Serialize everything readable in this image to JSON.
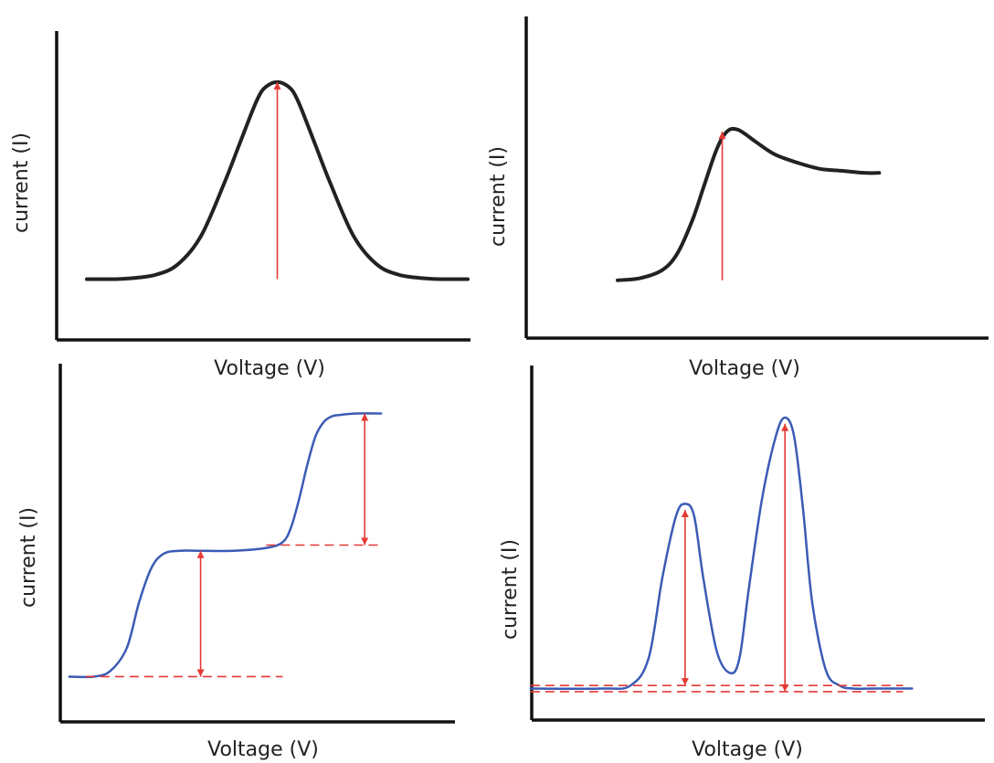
{
  "chart_data": [
    {
      "type": "line",
      "title": "",
      "xlabel": "Voltage (V)",
      "ylabel": "current (I)",
      "series": [
        {
          "x": [
            0,
            4,
            10,
            18,
            24,
            30,
            36,
            40,
            44,
            46,
            48,
            50,
            52,
            54,
            56,
            60,
            64,
            70,
            76,
            82,
            90,
            96,
            100
          ],
          "y": [
            4,
            4,
            4.2,
            6,
            11,
            24,
            48,
            66,
            84,
            91,
            94,
            95,
            94,
            91,
            84,
            66,
            48,
            24,
            11,
            6,
            4.2,
            4,
            4
          ]
        }
      ],
      "annotations": [
        {
          "type": "arrow",
          "x": 50,
          "from": 4,
          "to": 95
        }
      ]
    },
    {
      "type": "line",
      "title": "",
      "xlabel": "Voltage (V)",
      "ylabel": "current (I)",
      "series": [
        {
          "x": [
            0,
            6,
            12,
            16,
            20,
            23,
            26,
            28,
            30,
            32,
            34,
            37,
            42,
            48,
            54,
            60,
            66,
            70
          ],
          "y": [
            5,
            6,
            10,
            18,
            34,
            50,
            66,
            74,
            78,
            78,
            76,
            72,
            66,
            62,
            59,
            58,
            57,
            57
          ]
        }
      ],
      "annotations": [
        {
          "type": "arrow",
          "x": 28,
          "from": 5,
          "to": 77
        }
      ]
    },
    {
      "type": "line",
      "title": "",
      "xlabel": "Voltage (V)",
      "ylabel": "current (I)",
      "series": [
        {
          "x": [
            10,
            16,
            20,
            24,
            27,
            30,
            33,
            37,
            42,
            50,
            58,
            62,
            64,
            66,
            68,
            70,
            72,
            74,
            76,
            80,
            86
          ],
          "y": [
            4,
            4,
            6,
            14,
            30,
            42,
            47,
            48,
            48,
            48,
            49,
            51,
            56,
            66,
            78,
            88,
            93,
            95,
            95.5,
            96,
            96
          ]
        }
      ],
      "annotations": [
        {
          "type": "arrow",
          "x": 42,
          "from": 4,
          "to": 48
        },
        {
          "type": "arrow",
          "x": 82,
          "from": 50,
          "to": 96
        }
      ]
    },
    {
      "type": "line",
      "title": "",
      "xlabel": "Voltage (V)",
      "ylabel": "current (I)",
      "series": [
        {
          "x": [
            4,
            20,
            26,
            30,
            33,
            36,
            38,
            40,
            42,
            45,
            48,
            50,
            52,
            55,
            58,
            60,
            62,
            64,
            66,
            69,
            72,
            75,
            80,
            88
          ],
          "y": [
            4,
            4,
            5,
            14,
            40,
            60,
            64,
            60,
            40,
            16,
            9,
            14,
            36,
            66,
            86,
            92,
            86,
            62,
            32,
            10,
            5,
            4,
            4,
            4
          ]
        }
      ],
      "annotations": [
        {
          "type": "arrow",
          "x": 38,
          "from": 5,
          "to": 62
        },
        {
          "type": "arrow",
          "x": 60,
          "from": 3,
          "to": 90
        }
      ]
    }
  ],
  "colors": {
    "curve_black": "#222222",
    "curve_blue": "#3b5bb5",
    "annotation_red": "#e53935",
    "axis": "#111111"
  }
}
